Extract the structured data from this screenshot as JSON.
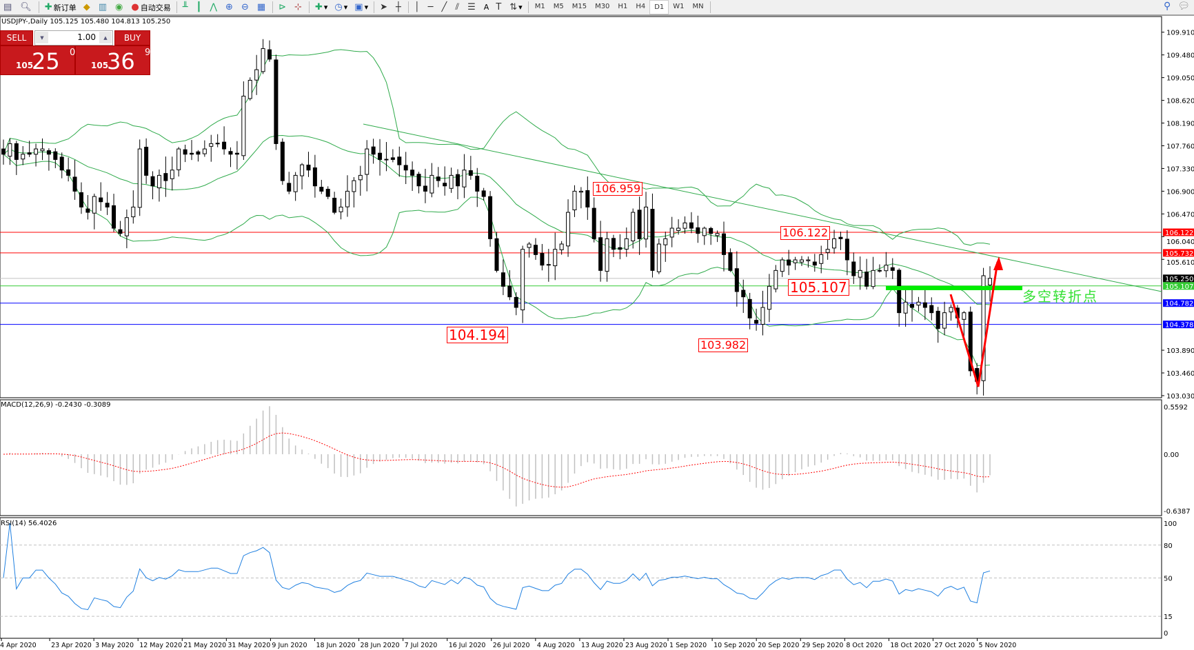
{
  "toolbar": {
    "new_order": "新订单",
    "auto_trading": "自动交易",
    "timeframes": [
      "M1",
      "M5",
      "M15",
      "M30",
      "H1",
      "H4",
      "D1",
      "W1",
      "MN"
    ],
    "active_timeframe": "D1",
    "text_tool": "A"
  },
  "chart_header": {
    "symbol_line": "USDJPY-,Daily  105.125 105.480 104.813 105.250"
  },
  "trade_panel": {
    "sell_label": "SELL",
    "buy_label": "BUY",
    "lot": "1.00",
    "sell_price": {
      "small": "105",
      "big": "25",
      "sup": "0"
    },
    "buy_price": {
      "small": "105",
      "big": "36",
      "sup": "9"
    },
    "color": "#c8191d"
  },
  "annotations": {
    "high1": "106.959",
    "low1": "104.194",
    "low2": "103.982",
    "level1": "106.122",
    "level2": "105.107",
    "turn_point": "多空转折点"
  },
  "price_axis": {
    "ticks": [
      "109.910",
      "109.480",
      "109.050",
      "108.620",
      "108.190",
      "107.760",
      "107.330",
      "106.900",
      "106.470",
      "106.040",
      "105.610",
      "103.890",
      "103.460",
      "103.030"
    ],
    "hlines": [
      {
        "value": "106.122",
        "color": "#ff0000"
      },
      {
        "value": "105.732",
        "color": "#ff0000"
      },
      {
        "value": "105.250",
        "color": "#000000",
        "line": "#c0c0c0"
      },
      {
        "value": "105.107",
        "color": "#33cc33"
      },
      {
        "value": "104.782",
        "color": "#0000ff"
      },
      {
        "value": "104.378",
        "color": "#0000ff"
      }
    ]
  },
  "macd": {
    "label": "MACD(12,26,9) -0.2430 -0.3089",
    "ticks": [
      "0.5592",
      "0.00",
      "-0.6387"
    ]
  },
  "rsi": {
    "label": "RSI(14) 56.4026",
    "ticks": [
      "100",
      "80",
      "50",
      "15",
      "0"
    ]
  },
  "chart_data": {
    "type": "candlestick",
    "symbol": "USDJPY-",
    "timeframe": "Daily",
    "last_ohlc": {
      "open": 105.125,
      "high": 105.48,
      "low": 104.813,
      "close": 105.25
    },
    "ylim": [
      103.03,
      109.91
    ],
    "x_tick_labels": [
      "4 Apr 2020",
      "23 Apr 2020",
      "3 May 2020",
      "12 May 2020",
      "21 May 2020",
      "31 May 2020",
      "9 Jun 2020",
      "18 Jun 2020",
      "28 Jun 2020",
      "7 Jul 2020",
      "16 Jul 2020",
      "26 Jul 2020",
      "4 Aug 2020",
      "13 Aug 2020",
      "23 Aug 2020",
      "1 Sep 2020",
      "10 Sep 2020",
      "20 Sep 2020",
      "29 Sep 2020",
      "8 Oct 2020",
      "18 Oct 2020",
      "27 Oct 2020",
      "5 Nov 2020"
    ],
    "close": [
      107.6,
      107.8,
      107.5,
      107.6,
      107.6,
      107.7,
      107.7,
      107.6,
      107.5,
      107.3,
      107.2,
      106.9,
      106.6,
      106.5,
      106.8,
      106.7,
      106.6,
      106.2,
      106.1,
      106.4,
      106.6,
      107.7,
      107.2,
      107.0,
      107.2,
      107.1,
      107.3,
      107.7,
      107.6,
      107.6,
      107.6,
      107.7,
      107.8,
      107.8,
      107.7,
      107.6,
      107.6,
      108.7,
      109.0,
      109.2,
      109.6,
      109.4,
      107.8,
      107.1,
      106.9,
      107.2,
      107.4,
      107.3,
      107.0,
      106.9,
      106.8,
      106.5,
      106.6,
      106.9,
      107.1,
      107.2,
      107.7,
      107.6,
      107.5,
      107.5,
      107.5,
      107.4,
      107.3,
      107.2,
      107.0,
      106.9,
      107.2,
      107.1,
      107.0,
      107.2,
      107.0,
      107.3,
      107.2,
      106.9,
      106.8,
      106.0,
      105.4,
      105.1,
      104.9,
      104.7,
      105.8,
      105.9,
      105.7,
      105.5,
      105.5,
      105.8,
      105.9,
      106.5,
      106.9,
      106.9,
      106.6,
      106.0,
      105.4,
      106.0,
      105.8,
      105.8,
      106.0,
      106.5,
      106.0,
      106.6,
      105.4,
      105.9,
      106.0,
      106.2,
      106.2,
      106.3,
      106.2,
      106.1,
      106.2,
      106.1,
      106.1,
      105.7,
      105.4,
      105.0,
      104.9,
      104.5,
      104.4,
      104.7,
      105.1,
      105.4,
      105.6,
      105.5,
      105.6,
      105.6,
      105.6,
      105.5,
      105.7,
      105.8,
      106.0,
      106.0,
      105.6,
      105.3,
      105.4,
      105.1,
      105.4,
      105.4,
      105.5,
      105.4,
      104.6,
      104.8,
      104.7,
      104.8,
      104.7,
      104.6,
      104.3,
      104.6,
      104.7,
      104.5,
      104.6,
      103.5,
      103.3,
      105.3,
      105.25
    ],
    "indicators": [
      "Bollinger Bands(20,2)",
      "MACD(12,26,9)",
      "RSI(14)"
    ],
    "colors": {
      "candle": "#000000",
      "bands": "#2eaa4a",
      "trendline": "#2eaa4a",
      "macd_hist": "#c0c0c0",
      "macd_signal": "#ff0000",
      "rsi": "#1e7fe0",
      "arrow": "#ff0000",
      "turn_bar": "#00ee00"
    }
  }
}
